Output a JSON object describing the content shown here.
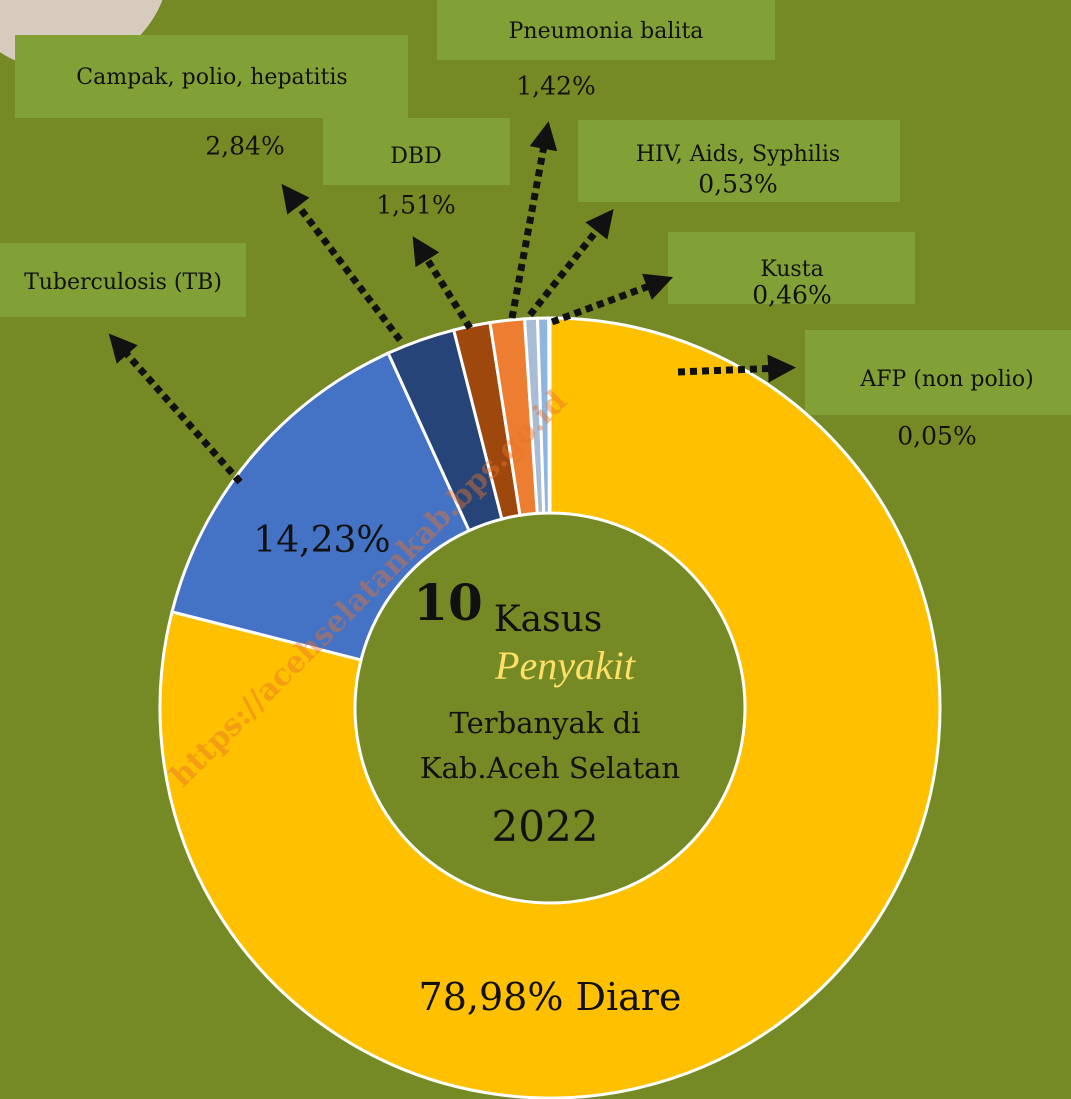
{
  "chart_data": {
    "type": "donut",
    "categories": [
      "Diare",
      "Tuberculosis (TB)",
      "Campak, polio, hepatitis",
      "DBD",
      "Pneumonia balita",
      "HIV, Aids, Syphilis",
      "Kusta",
      "AFP (non polio)"
    ],
    "values": [
      78.98,
      14.23,
      2.84,
      1.51,
      1.42,
      0.53,
      0.46,
      0.05
    ],
    "value_labels": [
      "78,98%",
      "14,23%",
      "2,84%",
      "1,51%",
      "1,42%",
      "0,53%",
      "0,46%",
      "0,05%"
    ],
    "colors": [
      "#ffc000",
      "#4472c4",
      "#264478",
      "#9e480e",
      "#ed7d31",
      "#a9bcd6",
      "#8fb4de",
      "#5b9bd5"
    ],
    "center_text": {
      "number": "10",
      "line1": "Kasus",
      "line2": "Penyakit",
      "line3": "Terbanyak di",
      "line4": "Kab.Aceh Selatan",
      "year": "2022"
    },
    "watermark": "https://acehselatankab.bps.go.id"
  }
}
